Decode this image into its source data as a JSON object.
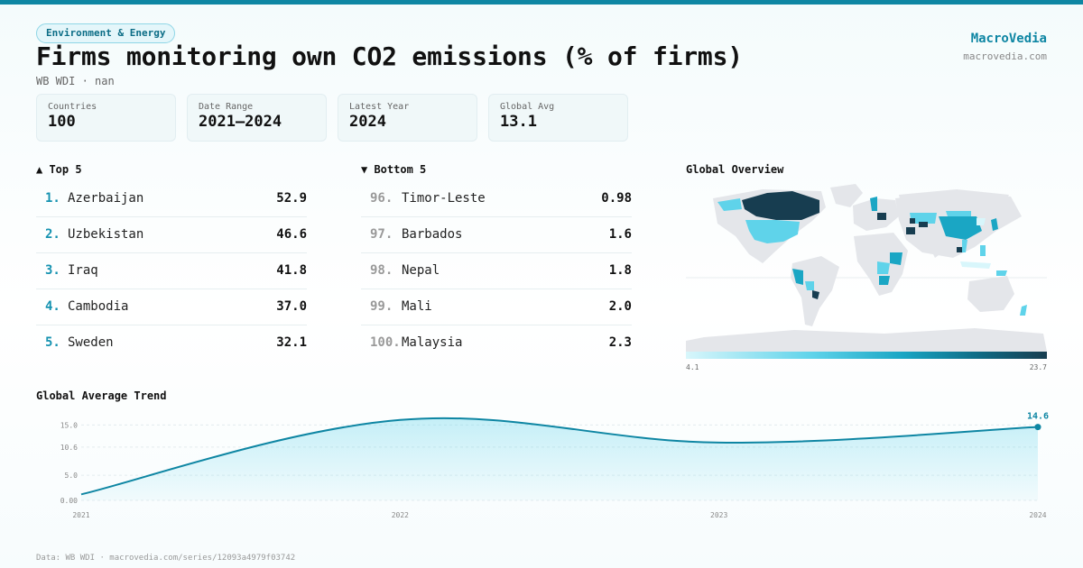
{
  "header": {
    "tag": "Environment & Energy",
    "title": "Firms monitoring own CO2 emissions (% of firms)",
    "subtitle": "WB WDI · nan",
    "brand": "MacroVedia",
    "brand_url": "macrovedia.com"
  },
  "stats": [
    {
      "label": "Countries",
      "value": "100"
    },
    {
      "label": "Date Range",
      "value": "2021–2024"
    },
    {
      "label": "Latest Year",
      "value": "2024"
    },
    {
      "label": "Global Avg",
      "value": "13.1"
    }
  ],
  "top5": {
    "heading": "▲ Top 5",
    "items": [
      {
        "rank": "1.",
        "name": "Azerbaijan",
        "value": "52.9"
      },
      {
        "rank": "2.",
        "name": "Uzbekistan",
        "value": "46.6"
      },
      {
        "rank": "3.",
        "name": "Iraq",
        "value": "41.8"
      },
      {
        "rank": "4.",
        "name": "Cambodia",
        "value": "37.0"
      },
      {
        "rank": "5.",
        "name": "Sweden",
        "value": "32.1"
      }
    ]
  },
  "bottom5": {
    "heading": "▼ Bottom 5",
    "items": [
      {
        "rank": "96.",
        "name": "Timor-Leste",
        "value": "0.98"
      },
      {
        "rank": "97.",
        "name": "Barbados",
        "value": "1.6"
      },
      {
        "rank": "98.",
        "name": "Nepal",
        "value": "1.8"
      },
      {
        "rank": "99.",
        "name": "Mali",
        "value": "2.0"
      },
      {
        "rank": "100.",
        "name": "Malaysia",
        "value": "2.3"
      }
    ]
  },
  "map": {
    "heading": "Global Overview",
    "legend_min": "4.1",
    "legend_max": "23.7",
    "colors": {
      "no_data": "#e4e6ea",
      "low": "#d8f6fb",
      "mid": "#5fd3ea",
      "high": "#1aa6c4",
      "max": "#173d50"
    }
  },
  "trend": {
    "heading": "Global Average Trend",
    "end_label": "14.6"
  },
  "footer": "Data: WB WDI · macrovedia.com/series/12093a4979f03742",
  "chart_data": {
    "type": "area",
    "title": "Global Average Trend",
    "x": [
      "2021",
      "2022",
      "2023",
      "2024"
    ],
    "series": [
      {
        "values": [
          1.2,
          16.0,
          11.5,
          14.6
        ]
      }
    ],
    "y_ticks": [
      "0.00",
      "5.0",
      "10.6",
      "15.0"
    ],
    "ylim": [
      0,
      16.5
    ],
    "grid": true,
    "accent": "#0e86a3"
  }
}
